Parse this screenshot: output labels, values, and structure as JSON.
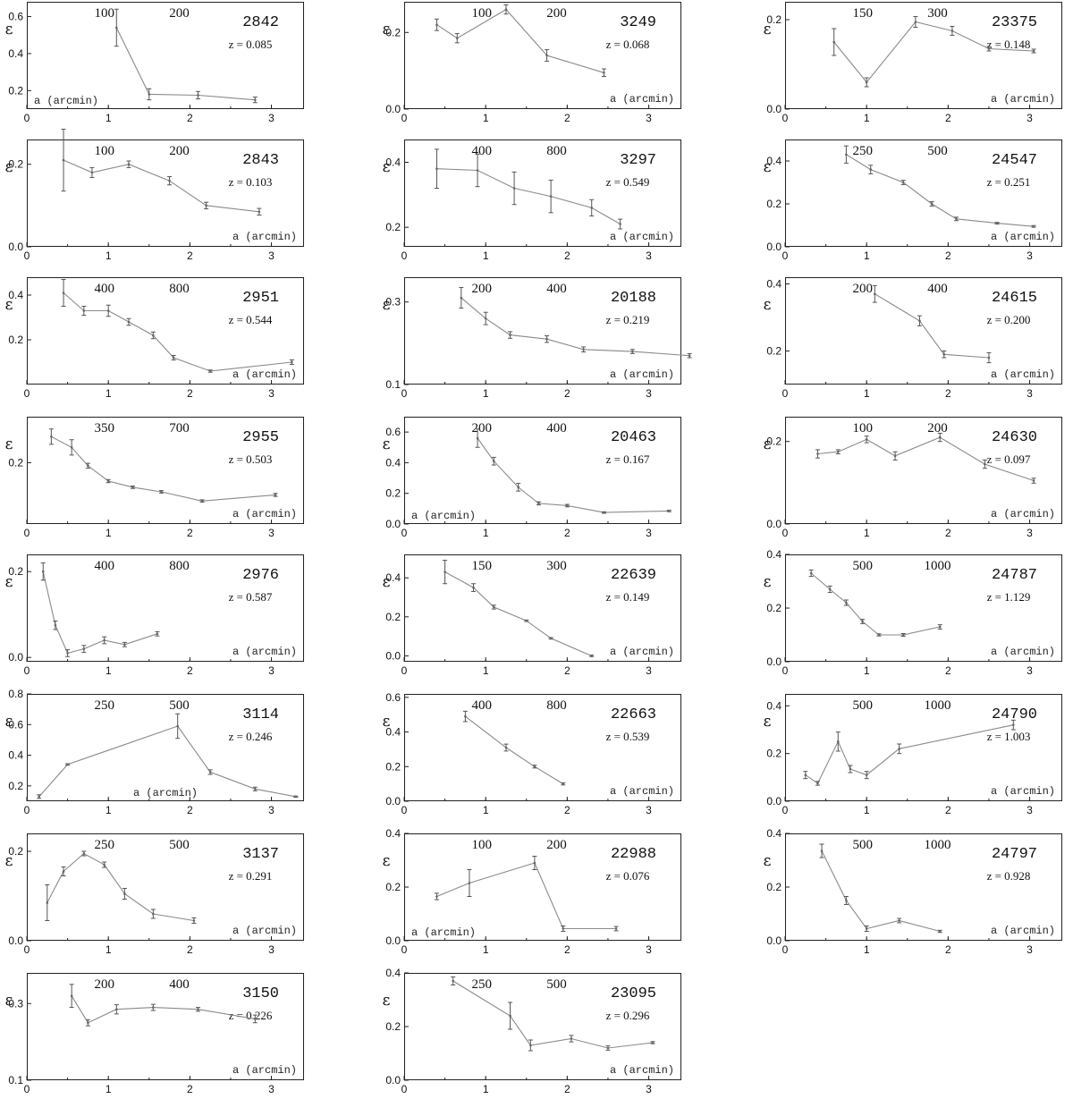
{
  "ylabel_symbol": "ε",
  "xlabel": "a (arcmin)",
  "chart_data": [
    {
      "id": "2842",
      "z": "z = 0.085",
      "top": [
        "100",
        "200"
      ],
      "type": "line",
      "ylim": [
        0.1,
        0.68
      ],
      "yticks": [
        "0.2",
        "0.4",
        "0.6"
      ],
      "xlim": [
        0,
        3.4
      ],
      "xticks": [
        "0",
        "1",
        "2",
        "3"
      ],
      "x": [
        1.1,
        1.5,
        2.1,
        2.8
      ],
      "y": [
        0.54,
        0.18,
        0.175,
        0.15
      ],
      "err": [
        0.1,
        0.03,
        0.02,
        0.015
      ]
    },
    {
      "id": "3249",
      "z": "z = 0.068",
      "top": [
        "100",
        "200"
      ],
      "type": "line",
      "ylim": [
        0,
        0.28
      ],
      "yticks": [
        "0.0",
        "0.2"
      ],
      "xlim": [
        0,
        3.4
      ],
      "xticks": [
        "0",
        "1",
        "2",
        "3"
      ],
      "x": [
        0.4,
        0.65,
        1.25,
        1.75,
        2.45
      ],
      "y": [
        0.22,
        0.185,
        0.26,
        0.14,
        0.095
      ],
      "err": [
        0.015,
        0.012,
        0.012,
        0.015,
        0.01
      ]
    },
    {
      "id": "23375",
      "z": "z = 0.148",
      "top": [
        "150",
        "300"
      ],
      "type": "line",
      "ylim": [
        0,
        0.24
      ],
      "yticks": [
        "0.0",
        "0.2"
      ],
      "xlim": [
        0,
        3.4
      ],
      "xticks": [
        "0",
        "1",
        "2",
        "3"
      ],
      "x": [
        0.6,
        1.0,
        1.6,
        2.05,
        2.5,
        3.05
      ],
      "y": [
        0.15,
        0.06,
        0.195,
        0.175,
        0.135,
        0.13
      ],
      "err": [
        0.03,
        0.01,
        0.012,
        0.01,
        0.005,
        0.004
      ]
    },
    {
      "id": "2843",
      "z": "z = 0.103",
      "top": [
        "100",
        "200"
      ],
      "type": "line",
      "ylim": [
        0,
        0.26
      ],
      "yticks": [
        "0.0",
        "0.2"
      ],
      "xlim": [
        0,
        3.4
      ],
      "xticks": [
        "0",
        "1",
        "2",
        "3"
      ],
      "x": [
        0.45,
        0.8,
        1.25,
        1.75,
        2.2,
        2.85
      ],
      "y": [
        0.21,
        0.18,
        0.2,
        0.16,
        0.1,
        0.085
      ],
      "err": [
        0.075,
        0.012,
        0.008,
        0.01,
        0.008,
        0.008
      ]
    },
    {
      "id": "3297",
      "z": "z = 0.549",
      "top": [
        "400",
        "800"
      ],
      "type": "line",
      "ylim": [
        0.14,
        0.47
      ],
      "yticks": [
        "0.2",
        "0.4"
      ],
      "xlim": [
        0,
        3.4
      ],
      "xticks": [
        "0",
        "1",
        "2",
        "3"
      ],
      "x": [
        0.4,
        0.9,
        1.35,
        1.8,
        2.3,
        2.65
      ],
      "y": [
        0.38,
        0.375,
        0.32,
        0.295,
        0.26,
        0.21
      ],
      "err": [
        0.06,
        0.05,
        0.05,
        0.05,
        0.025,
        0.015
      ]
    },
    {
      "id": "24547",
      "z": "z = 0.251",
      "top": [
        "250",
        "500"
      ],
      "type": "line",
      "ylim": [
        0,
        0.5
      ],
      "yticks": [
        "0.0",
        "0.2",
        "0.4"
      ],
      "xlim": [
        0,
        3.4
      ],
      "xticks": [
        "0",
        "1",
        "2",
        "3"
      ],
      "x": [
        0.75,
        1.05,
        1.45,
        1.8,
        2.1,
        2.6,
        3.05
      ],
      "y": [
        0.43,
        0.36,
        0.3,
        0.2,
        0.13,
        0.11,
        0.095
      ],
      "err": [
        0.04,
        0.02,
        0.01,
        0.01,
        0.008,
        0.004,
        0.004
      ]
    },
    {
      "id": "2951",
      "z": "z = 0.544",
      "top": [
        "400",
        "800"
      ],
      "type": "line",
      "ylim": [
        0,
        0.48
      ],
      "yticks": [
        "0.2",
        "0.4"
      ],
      "xlim": [
        0,
        3.4
      ],
      "xticks": [
        "0",
        "1",
        "2",
        "3"
      ],
      "x": [
        0.45,
        0.7,
        1.0,
        1.25,
        1.55,
        1.8,
        2.25,
        3.25
      ],
      "y": [
        0.41,
        0.33,
        0.33,
        0.28,
        0.22,
        0.12,
        0.06,
        0.1
      ],
      "err": [
        0.06,
        0.02,
        0.025,
        0.015,
        0.015,
        0.01,
        0.005,
        0.01
      ]
    },
    {
      "id": "20188",
      "z": "z = 0.219",
      "top": [
        "200",
        "400"
      ],
      "type": "line",
      "ylim": [
        0.1,
        0.36
      ],
      "yticks": [
        "0.1",
        "0.3"
      ],
      "xlim": [
        0,
        3.4
      ],
      "xticks": [
        "0",
        "1",
        "2",
        "3"
      ],
      "x": [
        0.7,
        1.0,
        1.3,
        1.75,
        2.2,
        2.8,
        3.5
      ],
      "y": [
        0.31,
        0.26,
        0.22,
        0.21,
        0.185,
        0.18,
        0.17
      ],
      "err": [
        0.025,
        0.015,
        0.008,
        0.008,
        0.006,
        0.005,
        0.005
      ]
    },
    {
      "id": "24615",
      "z": "z = 0.200",
      "top": [
        "200",
        "400"
      ],
      "type": "line",
      "ylim": [
        0.1,
        0.42
      ],
      "yticks": [
        "0.2",
        "0.4"
      ],
      "xlim": [
        0,
        3.4
      ],
      "xticks": [
        "0",
        "1",
        "2",
        "3"
      ],
      "x": [
        1.1,
        1.65,
        1.95,
        2.5
      ],
      "y": [
        0.37,
        0.29,
        0.19,
        0.18
      ],
      "err": [
        0.025,
        0.015,
        0.01,
        0.015
      ]
    },
    {
      "id": "2955",
      "z": "z = 0.503",
      "top": [
        "350",
        "700"
      ],
      "type": "line",
      "ylim": [
        0,
        0.35
      ],
      "yticks": [
        "0.2"
      ],
      "xlim": [
        0,
        3.4
      ],
      "xticks": [
        "0",
        "1",
        "2",
        "3"
      ],
      "x": [
        0.3,
        0.55,
        0.75,
        1.0,
        1.3,
        1.65,
        2.15,
        3.05
      ],
      "y": [
        0.285,
        0.25,
        0.19,
        0.14,
        0.12,
        0.105,
        0.075,
        0.095
      ],
      "err": [
        0.025,
        0.025,
        0.008,
        0.005,
        0.004,
        0.004,
        0.004,
        0.005
      ]
    },
    {
      "id": "20463",
      "z": "z = 0.167",
      "top": [
        "200",
        "400"
      ],
      "type": "line",
      "ylim": [
        0,
        0.7
      ],
      "yticks": [
        "0.0",
        "0.2",
        "0.4",
        "0.6"
      ],
      "xlim": [
        0,
        3.4
      ],
      "xticks": [
        "0",
        "1",
        "2",
        "3"
      ],
      "x": [
        0.9,
        1.1,
        1.4,
        1.65,
        2.0,
        2.45,
        3.25
      ],
      "y": [
        0.56,
        0.41,
        0.24,
        0.135,
        0.12,
        0.075,
        0.085
      ],
      "err": [
        0.06,
        0.025,
        0.025,
        0.01,
        0.008,
        0.005,
        0.005
      ]
    },
    {
      "id": "24630",
      "z": "z = 0.097",
      "top": [
        "100",
        "200"
      ],
      "type": "line",
      "ylim": [
        0,
        0.26
      ],
      "yticks": [
        "0.0",
        "0.2"
      ],
      "xlim": [
        0,
        3.4
      ],
      "xticks": [
        "0",
        "1",
        "2",
        "3"
      ],
      "x": [
        0.4,
        0.65,
        1.0,
        1.35,
        1.9,
        2.45,
        3.05
      ],
      "y": [
        0.17,
        0.175,
        0.205,
        0.165,
        0.21,
        0.145,
        0.105
      ],
      "err": [
        0.01,
        0.005,
        0.008,
        0.01,
        0.01,
        0.01,
        0.006
      ]
    },
    {
      "id": "2976",
      "z": "z = 0.587",
      "top": [
        "400",
        "800"
      ],
      "type": "line",
      "ylim": [
        -0.01,
        0.24
      ],
      "yticks": [
        "0.0",
        "0.2"
      ],
      "xlim": [
        0,
        3.4
      ],
      "xticks": [
        "0",
        "1",
        "2",
        "3"
      ],
      "x": [
        0.2,
        0.35,
        0.5,
        0.7,
        0.95,
        1.2,
        1.6
      ],
      "y": [
        0.2,
        0.075,
        0.01,
        0.02,
        0.04,
        0.03,
        0.055
      ],
      "err": [
        0.02,
        0.01,
        0.008,
        0.008,
        0.008,
        0.005,
        0.005
      ]
    },
    {
      "id": "22639",
      "z": "z = 0.149",
      "top": [
        "150",
        "300"
      ],
      "type": "line",
      "ylim": [
        -0.03,
        0.52
      ],
      "yticks": [
        "0.0",
        "0.2",
        "0.4"
      ],
      "xlim": [
        0,
        3.4
      ],
      "xticks": [
        "0",
        "1",
        "2",
        "3"
      ],
      "x": [
        0.5,
        0.85,
        1.1,
        1.5,
        1.8,
        2.3
      ],
      "y": [
        0.43,
        0.35,
        0.25,
        0.18,
        0.09,
        0.0
      ],
      "err": [
        0.06,
        0.02,
        0.01,
        0.004,
        0.004,
        0.004
      ]
    },
    {
      "id": "24787",
      "z": "z = 1.129",
      "top": [
        "500",
        "1000"
      ],
      "type": "line",
      "ylim": [
        0,
        0.4
      ],
      "yticks": [
        "0.0",
        "0.2",
        "0.4"
      ],
      "xlim": [
        0,
        3.4
      ],
      "xticks": [
        "0",
        "1",
        "2",
        "3"
      ],
      "x": [
        0.32,
        0.55,
        0.75,
        0.95,
        1.15,
        1.45,
        1.9
      ],
      "y": [
        0.33,
        0.27,
        0.22,
        0.15,
        0.1,
        0.1,
        0.13
      ],
      "err": [
        0.012,
        0.012,
        0.01,
        0.008,
        0.004,
        0.005,
        0.008
      ]
    },
    {
      "id": "3114",
      "z": "z = 0.246",
      "top": [
        "250",
        "500"
      ],
      "type": "line",
      "ylim": [
        0.1,
        0.8
      ],
      "yticks": [
        "0.2",
        "0.4",
        "0.6",
        "0.8"
      ],
      "xlim": [
        0,
        3.4
      ],
      "xticks": [
        "0",
        "1",
        "2",
        "3"
      ],
      "x": [
        0.15,
        0.5,
        1.85,
        2.25,
        2.8,
        3.3
      ],
      "y": [
        0.13,
        0.34,
        0.59,
        0.29,
        0.18,
        0.13
      ],
      "err": [
        0.012,
        0.005,
        0.08,
        0.015,
        0.012,
        0.004
      ]
    },
    {
      "id": "22663",
      "z": "z = 0.539",
      "top": [
        "400",
        "800"
      ],
      "type": "line",
      "ylim": [
        0,
        0.62
      ],
      "yticks": [
        "0.0",
        "0.2",
        "0.4",
        "0.6"
      ],
      "xlim": [
        0,
        3.4
      ],
      "xticks": [
        "0",
        "1",
        "2",
        "3"
      ],
      "x": [
        0.75,
        1.25,
        1.6,
        1.95
      ],
      "y": [
        0.49,
        0.31,
        0.2,
        0.1
      ],
      "err": [
        0.03,
        0.02,
        0.008,
        0.006
      ]
    },
    {
      "id": "24790",
      "z": "z = 1.003",
      "top": [
        "500",
        "1000"
      ],
      "type": "line",
      "ylim": [
        0,
        0.45
      ],
      "yticks": [
        "0.0",
        "0.2",
        "0.4"
      ],
      "xlim": [
        0,
        3.4
      ],
      "xticks": [
        "0",
        "1",
        "2",
        "3"
      ],
      "x": [
        0.25,
        0.4,
        0.65,
        0.8,
        1.0,
        1.4,
        2.8
      ],
      "y": [
        0.11,
        0.075,
        0.25,
        0.135,
        0.11,
        0.22,
        0.32
      ],
      "err": [
        0.015,
        0.008,
        0.04,
        0.015,
        0.015,
        0.02,
        0.02
      ]
    },
    {
      "id": "3137",
      "z": "z = 0.291",
      "top": [
        "250",
        "500"
      ],
      "type": "line",
      "ylim": [
        0,
        0.24
      ],
      "yticks": [
        "0.0",
        "0.2"
      ],
      "xlim": [
        0,
        3.4
      ],
      "xticks": [
        "0",
        "1",
        "2",
        "3"
      ],
      "x": [
        0.25,
        0.45,
        0.7,
        0.95,
        1.2,
        1.55,
        2.05
      ],
      "y": [
        0.085,
        0.155,
        0.195,
        0.17,
        0.105,
        0.06,
        0.045
      ],
      "err": [
        0.04,
        0.01,
        0.005,
        0.006,
        0.012,
        0.01,
        0.006
      ]
    },
    {
      "id": "22988",
      "z": "z = 0.076",
      "top": [
        "100",
        "200"
      ],
      "type": "line",
      "ylim": [
        0,
        0.4
      ],
      "yticks": [
        "0.0",
        "0.2",
        "0.4"
      ],
      "xlim": [
        0,
        3.4
      ],
      "xticks": [
        "0",
        "1",
        "2",
        "3"
      ],
      "x": [
        0.4,
        0.8,
        1.6,
        1.95,
        2.6
      ],
      "y": [
        0.165,
        0.215,
        0.29,
        0.045,
        0.045
      ],
      "err": [
        0.012,
        0.05,
        0.025,
        0.01,
        0.008
      ]
    },
    {
      "id": "24797",
      "z": "z = 0.928",
      "top": [
        "500",
        "1000"
      ],
      "type": "line",
      "ylim": [
        0,
        0.4
      ],
      "yticks": [
        "0.0",
        "0.2",
        "0.4"
      ],
      "xlim": [
        0,
        3.4
      ],
      "xticks": [
        "0",
        "1",
        "2",
        "3"
      ],
      "x": [
        0.45,
        0.75,
        1.0,
        1.4,
        1.9
      ],
      "y": [
        0.335,
        0.15,
        0.045,
        0.075,
        0.035
      ],
      "err": [
        0.025,
        0.015,
        0.01,
        0.008,
        0.004
      ]
    },
    {
      "id": "3150",
      "z": "z = 0.226",
      "top": [
        "200",
        "400"
      ],
      "type": "line",
      "ylim": [
        0.1,
        0.38
      ],
      "yticks": [
        "0.1",
        "0.3"
      ],
      "xlim": [
        0,
        3.4
      ],
      "xticks": [
        "0",
        "1",
        "2",
        "3"
      ],
      "x": [
        0.55,
        0.75,
        1.1,
        1.55,
        2.1,
        2.8
      ],
      "y": [
        0.32,
        0.25,
        0.285,
        0.29,
        0.285,
        0.26
      ],
      "err": [
        0.03,
        0.008,
        0.012,
        0.008,
        0.005,
        0.01
      ]
    },
    {
      "id": "23095",
      "z": "z = 0.296",
      "top": [
        "250",
        "500"
      ],
      "type": "line",
      "ylim": [
        0,
        0.4
      ],
      "yticks": [
        "0.0",
        "0.2",
        "0.4"
      ],
      "xlim": [
        0,
        3.4
      ],
      "xticks": [
        "0",
        "1",
        "2",
        "3"
      ],
      "x": [
        0.6,
        1.3,
        1.55,
        2.05,
        2.5,
        3.05
      ],
      "y": [
        0.37,
        0.24,
        0.13,
        0.155,
        0.12,
        0.14
      ],
      "err": [
        0.015,
        0.05,
        0.02,
        0.012,
        0.008,
        0.004
      ]
    }
  ]
}
